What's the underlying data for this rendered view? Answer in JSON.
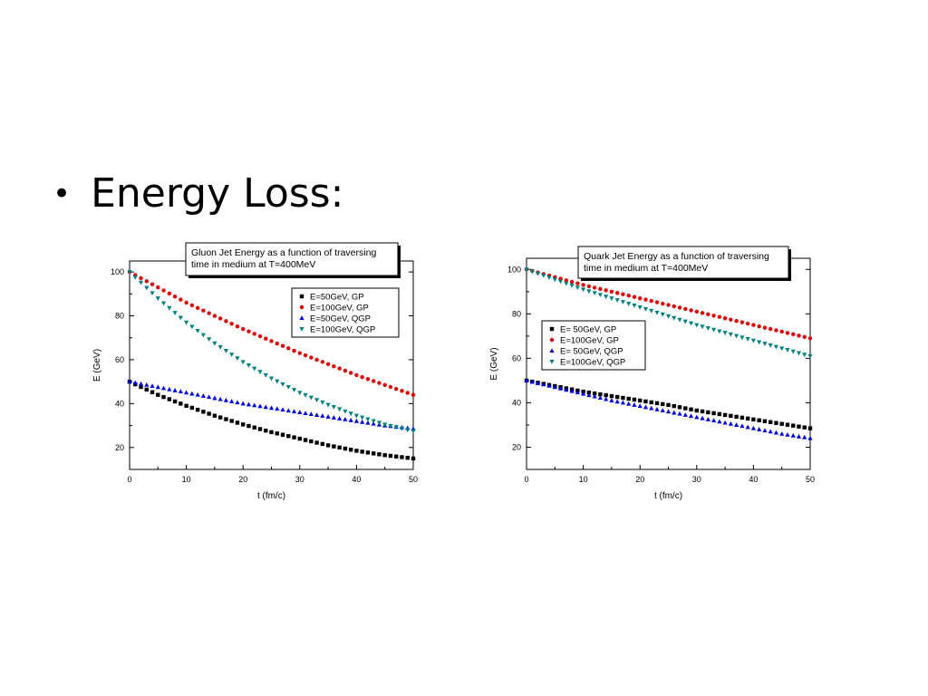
{
  "slide": {
    "bullet": "•",
    "heading": "Energy Loss:"
  },
  "chart_data": [
    {
      "type": "scatter",
      "title": "Gluon Jet Energy as a function of traversing time in medium at T=400MeV",
      "title_lines": [
        "Gluon Jet Energy as a function of traversing",
        "time in medium at T=400MeV"
      ],
      "xlabel": "t (fm/c)",
      "ylabel": "E (GeV)",
      "xlim": [
        0,
        50
      ],
      "ylim": [
        10,
        105
      ],
      "xticks": [
        0,
        10,
        20,
        30,
        40,
        50
      ],
      "yticks": [
        20,
        40,
        60,
        80,
        100
      ],
      "legend_position": "top-right",
      "series": [
        {
          "name": "E=50GeV, GP",
          "color": "#000000",
          "marker": "square",
          "x": [
            0,
            5,
            10,
            15,
            20,
            25,
            30,
            35,
            40,
            45,
            50
          ],
          "y": [
            50,
            44,
            39,
            34.5,
            30.5,
            27,
            24,
            21,
            18.5,
            16.5,
            15
          ]
        },
        {
          "name": "E=100GeV, GP",
          "color": "#e00000",
          "marker": "circle",
          "x": [
            0,
            5,
            10,
            15,
            20,
            25,
            30,
            35,
            40,
            45,
            50
          ],
          "y": [
            100,
            93,
            86,
            80,
            74,
            68.5,
            63,
            58,
            53,
            48.5,
            44
          ]
        },
        {
          "name": "E=50GeV, QGP",
          "color": "#0000e0",
          "marker": "triangle-up",
          "x": [
            0,
            5,
            10,
            15,
            20,
            25,
            30,
            35,
            40,
            45,
            50
          ],
          "y": [
            50,
            47.5,
            45,
            42.5,
            40,
            38,
            36,
            34,
            32,
            30,
            28.5
          ]
        },
        {
          "name": "E=100GeV, QGP",
          "color": "#008080",
          "marker": "triangle-down",
          "x": [
            0,
            5,
            10,
            15,
            20,
            25,
            30,
            35,
            40,
            45,
            50
          ],
          "y": [
            100,
            88,
            77,
            67.5,
            59,
            51.5,
            45,
            39.5,
            34.5,
            30.5,
            27.5
          ]
        }
      ]
    },
    {
      "type": "scatter",
      "title": "Quark Jet Energy as a function of traversing time in medium at T=400MeV",
      "title_lines": [
        "Quark Jet  Energy as a function of traversing",
        "time in medium at T=400MeV"
      ],
      "xlabel": "t (fm/c)",
      "ylabel": "E (GeV)",
      "xlim": [
        0,
        50
      ],
      "ylim": [
        10,
        105
      ],
      "xticks": [
        0,
        10,
        20,
        30,
        40,
        50
      ],
      "yticks": [
        20,
        40,
        60,
        80,
        100
      ],
      "legend_position": "center-left",
      "series": [
        {
          "name": "E=  50GeV, GP",
          "color": "#000000",
          "marker": "square",
          "x": [
            0,
            5,
            10,
            15,
            20,
            25,
            30,
            35,
            40,
            45,
            50
          ],
          "y": [
            50,
            47.5,
            45,
            43,
            41,
            39,
            36.5,
            34.5,
            32.5,
            30.5,
            28.5
          ]
        },
        {
          "name": "E=100GeV, GP",
          "color": "#e00000",
          "marker": "circle",
          "x": [
            0,
            5,
            10,
            15,
            20,
            25,
            30,
            35,
            40,
            45,
            50
          ],
          "y": [
            100,
            96.5,
            93,
            90,
            87,
            84,
            81,
            78,
            75,
            72,
            69
          ]
        },
        {
          "name": "E=  50GeV, QGP",
          "color": "#0000e0",
          "marker": "triangle-up",
          "x": [
            0,
            5,
            10,
            15,
            20,
            25,
            30,
            35,
            40,
            45,
            50
          ],
          "y": [
            50,
            47,
            44,
            41,
            38.5,
            36,
            33.5,
            31,
            28.5,
            26,
            24
          ]
        },
        {
          "name": "E=100GeV, QGP",
          "color": "#008080",
          "marker": "triangle-down",
          "x": [
            0,
            5,
            10,
            15,
            20,
            25,
            30,
            35,
            40,
            45,
            50
          ],
          "y": [
            100,
            95.5,
            91,
            87,
            83,
            79,
            75,
            71.5,
            68,
            64.5,
            61
          ]
        }
      ]
    }
  ]
}
